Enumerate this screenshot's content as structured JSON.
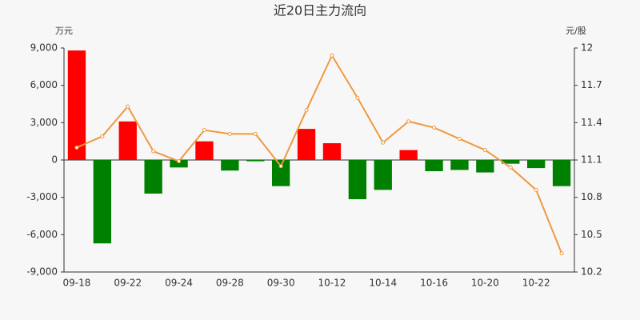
{
  "chart_data": {
    "type": "bar-line",
    "title": "近20日主力流向",
    "y_label": "万元",
    "y2_label": "元/股",
    "categories": [
      "09-18",
      null,
      "09-22",
      null,
      "09-24",
      null,
      "09-28",
      null,
      "09-30",
      null,
      "10-12",
      null,
      "10-14",
      null,
      "10-16",
      null,
      "10-20",
      null,
      "10-22",
      null
    ],
    "series": [
      {
        "type": "bar",
        "positive_color": "#ff0000",
        "negative_color": "#008000",
        "values": [
          8800,
          -6700,
          3100,
          -2700,
          -600,
          1500,
          -850,
          -100,
          -2100,
          2500,
          1350,
          -3150,
          -2400,
          800,
          -900,
          -800,
          -1000,
          -300,
          -650,
          -2100
        ]
      },
      {
        "type": "line",
        "axis": "y2",
        "color": "#f0993e",
        "values": [
          11.2,
          11.29,
          11.53,
          11.17,
          11.09,
          11.34,
          11.31,
          11.31,
          11.05,
          11.5,
          11.94,
          11.6,
          11.24,
          11.41,
          11.36,
          11.27,
          11.18,
          11.04,
          10.86,
          10.35
        ]
      }
    ],
    "ylim": [
      -9000,
      9000
    ],
    "yticks": [
      {
        "value": 9000,
        "label": "9,000"
      },
      {
        "value": 6000,
        "label": "6,000"
      },
      {
        "value": 3000,
        "label": "3,000"
      },
      0,
      {
        "value": -3000,
        "label": "-3,000"
      },
      {
        "value": -6000,
        "label": "-6,000"
      },
      {
        "value": -9000,
        "label": "-9,000"
      }
    ],
    "y2lim": [
      10.2,
      12
    ],
    "y2ticks": [
      12,
      11.7,
      11.4,
      11.1,
      10.8,
      10.5,
      10.2
    ]
  }
}
